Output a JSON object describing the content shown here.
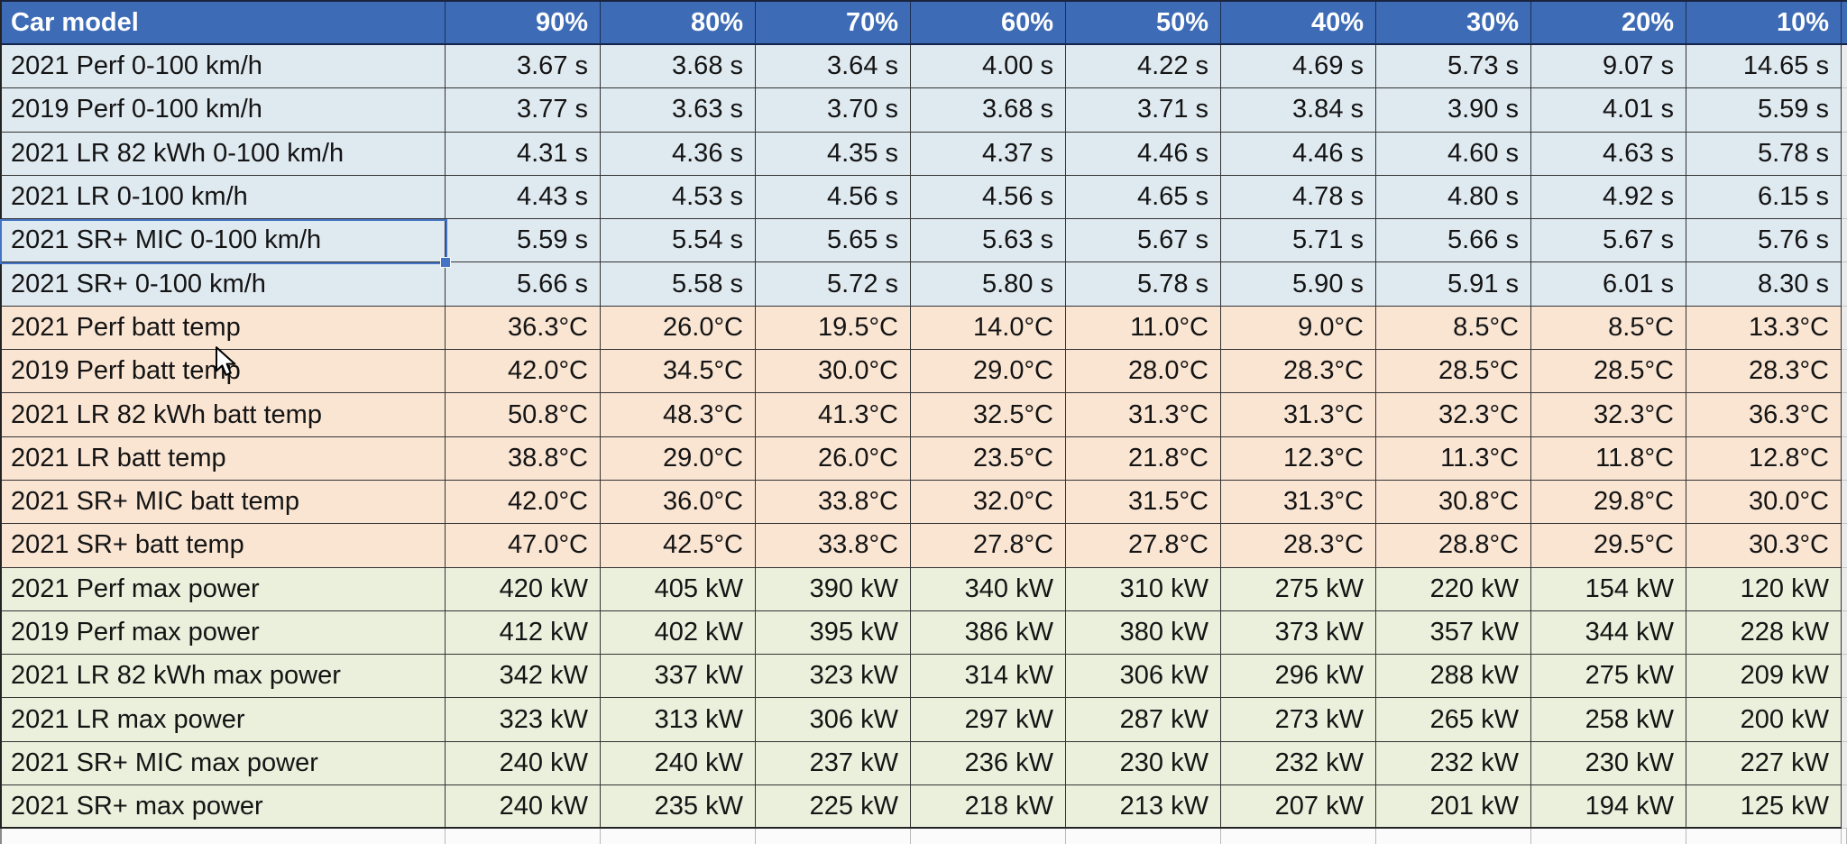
{
  "table": {
    "header": [
      "Car model",
      "90%",
      "80%",
      "70%",
      "60%",
      "50%",
      "40%",
      "30%",
      "20%",
      "10%"
    ],
    "sections": [
      {
        "name": "acceleration-0-100",
        "row_color": "#dfe9f0",
        "rows": [
          {
            "label": "2021 Perf 0-100 km/h",
            "values": [
              "3.67 s",
              "3.68 s",
              "3.64 s",
              "4.00 s",
              "4.22 s",
              "4.69 s",
              "5.73 s",
              "9.07 s",
              "14.65 s"
            ]
          },
          {
            "label": "2019 Perf 0-100 km/h",
            "values": [
              "3.77 s",
              "3.63 s",
              "3.70 s",
              "3.68 s",
              "3.71 s",
              "3.84 s",
              "3.90 s",
              "4.01 s",
              "5.59 s"
            ]
          },
          {
            "label": "2021 LR 82 kWh 0-100 km/h",
            "values": [
              "4.31 s",
              "4.36 s",
              "4.35 s",
              "4.37 s",
              "4.46 s",
              "4.46 s",
              "4.60 s",
              "4.63 s",
              "5.78 s"
            ]
          },
          {
            "label": "2021 LR 0-100 km/h",
            "values": [
              "4.43 s",
              "4.53 s",
              "4.56 s",
              "4.56 s",
              "4.65 s",
              "4.78 s",
              "4.80 s",
              "4.92 s",
              "6.15 s"
            ]
          },
          {
            "label": "2021 SR+ MIC 0-100 km/h",
            "values": [
              "5.59 s",
              "5.54 s",
              "5.65 s",
              "5.63 s",
              "5.67 s",
              "5.71 s",
              "5.66 s",
              "5.67 s",
              "5.76 s"
            ]
          },
          {
            "label": "2021 SR+ 0-100 km/h",
            "values": [
              "5.66 s",
              "5.58 s",
              "5.72 s",
              "5.80 s",
              "5.78 s",
              "5.90 s",
              "5.91 s",
              "6.01 s",
              "8.30 s"
            ]
          }
        ]
      },
      {
        "name": "battery-temperature",
        "row_color": "#fae5d3",
        "rows": [
          {
            "label": "2021 Perf batt temp",
            "values": [
              "36.3°C",
              "26.0°C",
              "19.5°C",
              "14.0°C",
              "11.0°C",
              "9.0°C",
              "8.5°C",
              "8.5°C",
              "13.3°C"
            ]
          },
          {
            "label": "2019 Perf batt temp",
            "values": [
              "42.0°C",
              "34.5°C",
              "30.0°C",
              "29.0°C",
              "28.0°C",
              "28.3°C",
              "28.5°C",
              "28.5°C",
              "28.3°C"
            ]
          },
          {
            "label": "2021 LR 82 kWh batt temp",
            "values": [
              "50.8°C",
              "48.3°C",
              "41.3°C",
              "32.5°C",
              "31.3°C",
              "31.3°C",
              "32.3°C",
              "32.3°C",
              "36.3°C"
            ]
          },
          {
            "label": "2021 LR batt temp",
            "values": [
              "38.8°C",
              "29.0°C",
              "26.0°C",
              "23.5°C",
              "21.8°C",
              "12.3°C",
              "11.3°C",
              "11.8°C",
              "12.8°C"
            ]
          },
          {
            "label": "2021 SR+ MIC batt temp",
            "values": [
              "42.0°C",
              "36.0°C",
              "33.8°C",
              "32.0°C",
              "31.5°C",
              "31.3°C",
              "30.8°C",
              "29.8°C",
              "30.0°C"
            ]
          },
          {
            "label": "2021 SR+ batt temp",
            "values": [
              "47.0°C",
              "42.5°C",
              "33.8°C",
              "27.8°C",
              "27.8°C",
              "28.3°C",
              "28.8°C",
              "29.5°C",
              "30.3°C"
            ]
          }
        ]
      },
      {
        "name": "max-power",
        "row_color": "#eaf0dc",
        "rows": [
          {
            "label": "2021 Perf max power",
            "values": [
              "420 kW",
              "405 kW",
              "390 kW",
              "340 kW",
              "310 kW",
              "275 kW",
              "220 kW",
              "154 kW",
              "120 kW"
            ]
          },
          {
            "label": "2019 Perf max power",
            "values": [
              "412 kW",
              "402 kW",
              "395 kW",
              "386 kW",
              "380 kW",
              "373 kW",
              "357 kW",
              "344 kW",
              "228 kW"
            ]
          },
          {
            "label": "2021 LR 82 kWh max power",
            "values": [
              "342 kW",
              "337 kW",
              "323 kW",
              "314 kW",
              "306 kW",
              "296 kW",
              "288 kW",
              "275 kW",
              "209 kW"
            ]
          },
          {
            "label": "2021 LR max power",
            "values": [
              "323 kW",
              "313 kW",
              "306 kW",
              "297 kW",
              "287 kW",
              "273 kW",
              "265 kW",
              "258 kW",
              "200 kW"
            ]
          },
          {
            "label": "2021 SR+ MIC max power",
            "values": [
              "240 kW",
              "240 kW",
              "237 kW",
              "236 kW",
              "230 kW",
              "232 kW",
              "232 kW",
              "230 kW",
              "227 kW"
            ]
          },
          {
            "label": "2021 SR+ max power",
            "values": [
              "240 kW",
              "235 kW",
              "225 kW",
              "218 kW",
              "213 kW",
              "207 kW",
              "201 kW",
              "194 kW",
              "125 kW"
            ]
          }
        ]
      }
    ],
    "selection": {
      "selected_row_label": "2021 SR+ MIC 0-100 km/h",
      "selected_column": "Car model"
    }
  },
  "colors": {
    "header_bg": "#3d6bb5",
    "header_text": "#ffffff",
    "accel_rows": "#dfe9f0",
    "temp_rows": "#fae5d3",
    "power_rows": "#eaf0dc",
    "grid_border": "#333333",
    "selection_border": "#4472c4"
  }
}
